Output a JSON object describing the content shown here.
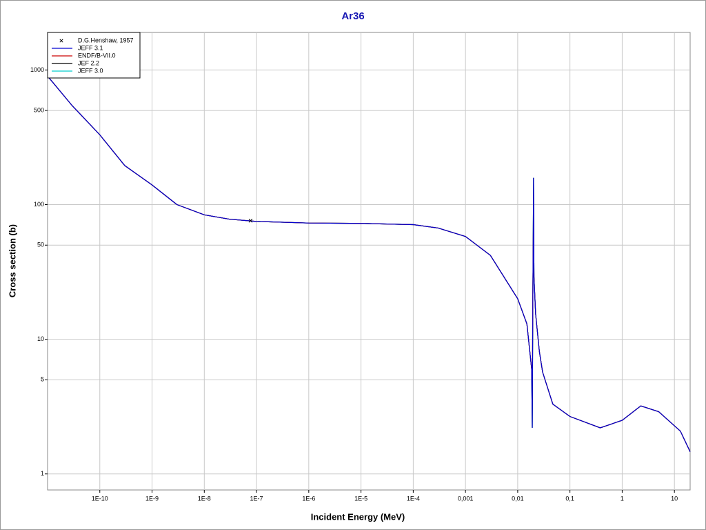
{
  "chart_data": {
    "type": "line",
    "title": "Ar36",
    "x_label": "Incident Energy (MeV)",
    "y_label": "Cross section (b)",
    "xscale": "log",
    "yscale": "log",
    "grid": true,
    "legend": "upper left",
    "xlim": [
      1e-11,
      20
    ],
    "ylim": [
      0.76,
      1900
    ],
    "xticks": [
      {
        "value": 1e-10,
        "label": "1E-10"
      },
      {
        "value": 1e-09,
        "label": "1E-9"
      },
      {
        "value": 1e-08,
        "label": "1E-8"
      },
      {
        "value": 1e-07,
        "label": "1E-7"
      },
      {
        "value": 1e-06,
        "label": "1E-6"
      },
      {
        "value": 1e-05,
        "label": "1E-5"
      },
      {
        "value": 0.0001,
        "label": "1E-4"
      },
      {
        "value": 0.001,
        "label": "0,001"
      },
      {
        "value": 0.01,
        "label": "0,01"
      },
      {
        "value": 0.1,
        "label": "0,1"
      },
      1,
      10
    ],
    "yticks": [
      1,
      5,
      10,
      50,
      100,
      500,
      1000
    ],
    "x": [
      1e-11,
      3e-11,
      1e-10,
      3e-10,
      1e-09,
      3e-09,
      1e-08,
      3e-08,
      1e-07,
      1e-06,
      1e-05,
      0.0001,
      0.0003,
      0.001,
      0.003,
      0.01,
      0.015,
      0.0185,
      0.019,
      0.0195,
      0.0201,
      0.0205,
      0.022,
      0.026,
      0.03,
      0.047,
      0.1,
      0.38,
      1,
      2.27,
      5,
      13,
      20
    ],
    "series": [
      {
        "name": "D.G.Henshaw, 1957",
        "mode": "markers",
        "color": "#000000",
        "x": [
          7.7e-08
        ],
        "values": [
          76
        ]
      },
      {
        "name": "JEFF 3.1",
        "mode": "line",
        "color": "#0000d0",
        "values": [
          900,
          540,
          330,
          195,
          140,
          100,
          84,
          78,
          75,
          73,
          72.5,
          71,
          67,
          58,
          42,
          20,
          13,
          6,
          2.2,
          20,
          158,
          29,
          15.5,
          8.1,
          5.7,
          3.3,
          2.67,
          2.2,
          2.5,
          3.2,
          2.9,
          2.08,
          1.46
        ]
      },
      {
        "name": "ENDF/B-VII.0",
        "mode": "line",
        "color": "#cc0000",
        "values": [
          900,
          540,
          330,
          195,
          140,
          100,
          84,
          78,
          75,
          73,
          72.5,
          71,
          67,
          58,
          42,
          20,
          13,
          6,
          4,
          25,
          88,
          29,
          15.5,
          8.1,
          5.7,
          3.3,
          2.67,
          2.2,
          2.5,
          3.2,
          2.9,
          2.08,
          1.46
        ]
      },
      {
        "name": "JEF 2.2",
        "mode": "line",
        "color": "#000000",
        "values": [
          900,
          540,
          330,
          195,
          140,
          100,
          84,
          78,
          75,
          73,
          72.5,
          71,
          67,
          58,
          42,
          20,
          13,
          6,
          2.2,
          20,
          158,
          29,
          15.5,
          8.1,
          5.7,
          3.3,
          2.67,
          2.2,
          2.5,
          3.2,
          2.9,
          2.08,
          1.46
        ]
      },
      {
        "name": "JEFF 3.0",
        "mode": "line",
        "color": "#00cccc",
        "values": [
          900,
          540,
          330,
          195,
          140,
          100,
          84,
          78,
          75,
          73,
          72.5,
          71,
          67,
          58,
          42,
          20,
          13,
          6,
          2.2,
          20,
          158,
          29,
          15.5,
          8.1,
          5.7,
          3.3,
          2.67,
          2.2,
          2.5,
          3.2,
          2.9,
          2.08,
          1.46
        ]
      }
    ]
  }
}
